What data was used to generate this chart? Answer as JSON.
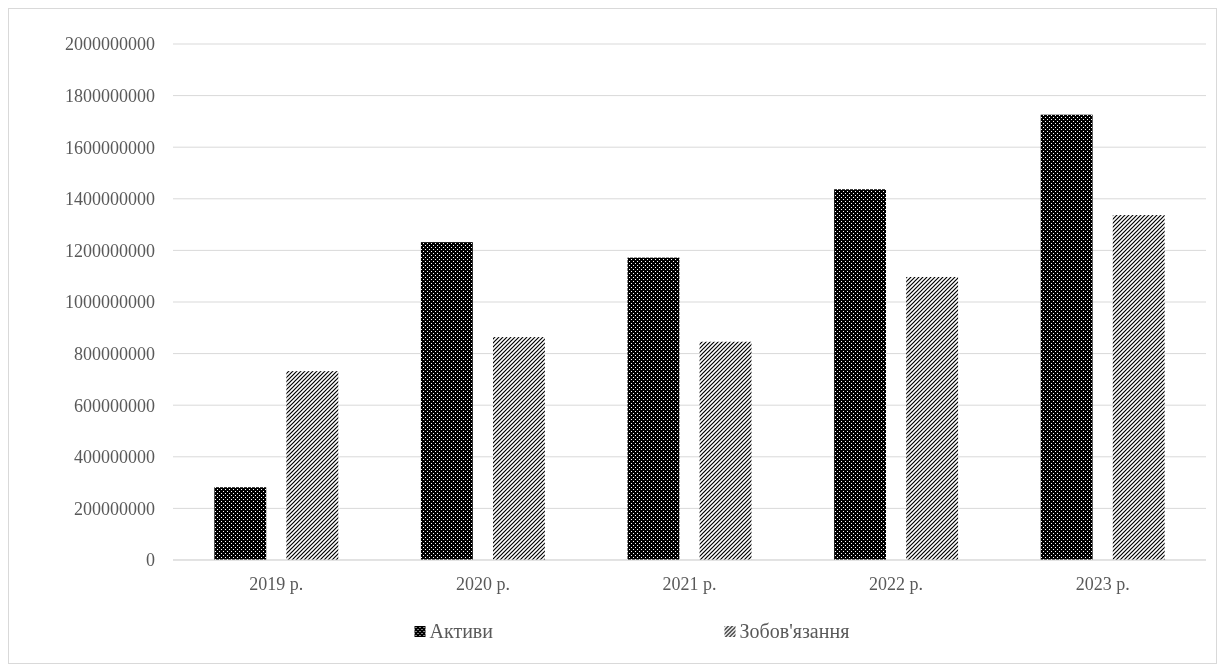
{
  "chart_data": {
    "type": "bar",
    "categories": [
      "2019 р.",
      "2020 р.",
      "2021 р.",
      "2022 р.",
      "2023 р."
    ],
    "series": [
      {
        "name": "Активи",
        "color": "#000000",
        "values": [
          282000000,
          1232000000,
          1172000000,
          1437000000,
          1726000000
        ]
      },
      {
        "name": "Зобов'язання",
        "color": "#000000",
        "values": [
          732000000,
          864000000,
          846000000,
          1097000000,
          1337000000
        ]
      }
    ],
    "ylim": [
      0,
      2000000000
    ],
    "yticks": [
      0,
      200000000,
      400000000,
      600000000,
      800000000,
      1000000000,
      1200000000,
      1400000000,
      1600000000,
      1800000000,
      2000000000
    ],
    "grid": "y",
    "legend": "bottom"
  }
}
